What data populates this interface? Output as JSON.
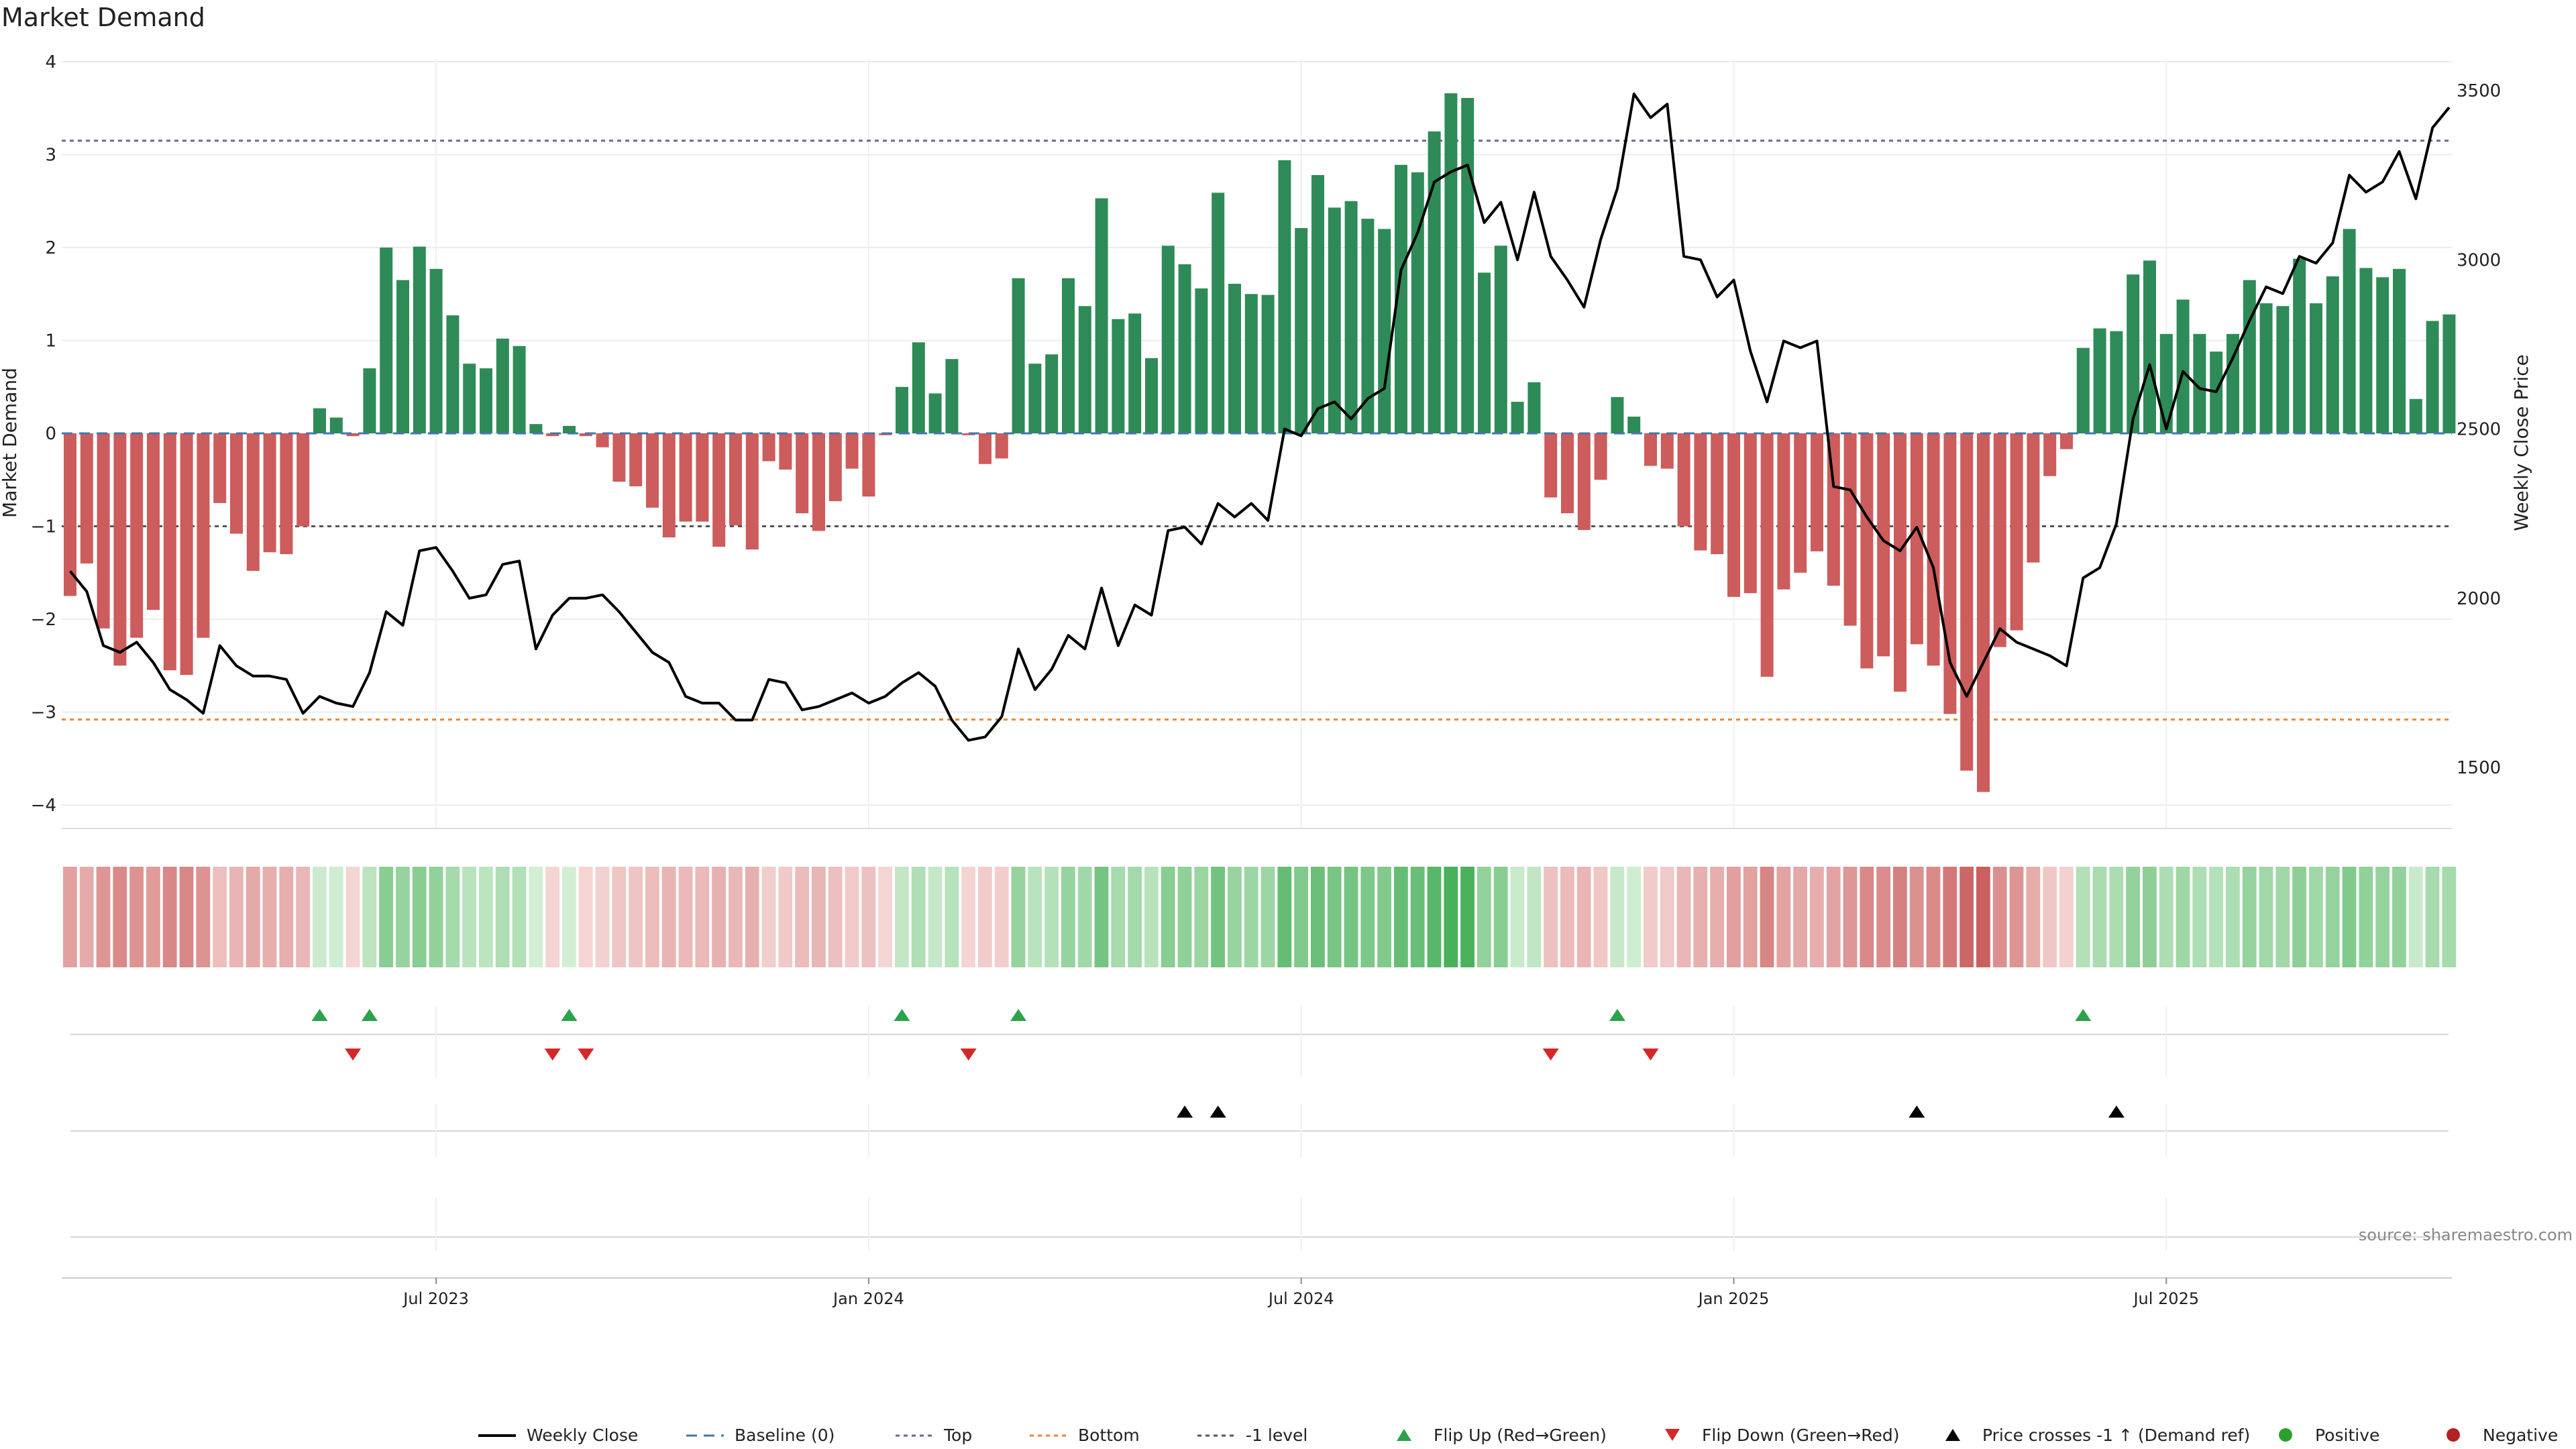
{
  "chart_data": {
    "type": "bar",
    "title": "Market Demand",
    "ylabel": "Market Demand",
    "y2label": "Weekly Close Price",
    "source": "source: sharemaestro.com",
    "ylim": [
      -4.3,
      4.0
    ],
    "y_ticks": [
      -4,
      -3,
      -2,
      -1,
      0,
      1,
      2,
      3,
      4
    ],
    "y2lim": [
      1350,
      3570
    ],
    "y2_ticks": [
      1500,
      2000,
      2500,
      3000,
      3500
    ],
    "x_ticks": [
      {
        "index": 22,
        "label": "Jul 2023"
      },
      {
        "index": 48,
        "label": "Jan 2024"
      },
      {
        "index": 74,
        "label": "Jul 2024"
      },
      {
        "index": 100,
        "label": "Jan 2025"
      },
      {
        "index": 126,
        "label": "Jul 2025"
      }
    ],
    "levels": {
      "top": 3.15,
      "bottom": -3.08,
      "minus_one": -1
    },
    "weeks": 144,
    "demand": [
      -1.75,
      -1.4,
      -2.1,
      -2.5,
      -2.2,
      -1.9,
      -2.55,
      -2.6,
      -2.2,
      -0.75,
      -1.08,
      -1.48,
      -1.28,
      -1.3,
      -1.0,
      0.27,
      0.17,
      -0.03,
      0.7,
      2.0,
      1.65,
      2.01,
      1.77,
      1.27,
      0.75,
      0.7,
      1.02,
      0.94,
      0.1,
      -0.03,
      0.08,
      -0.03,
      -0.15,
      -0.52,
      -0.57,
      -0.8,
      -1.12,
      -0.95,
      -0.95,
      -1.22,
      -0.99,
      -1.25,
      -0.3,
      -0.39,
      -0.86,
      -1.05,
      -0.73,
      -0.38,
      -0.68,
      -0.02,
      0.5,
      0.98,
      0.43,
      0.8,
      -0.02,
      -0.33,
      -0.27,
      1.67,
      0.75,
      0.85,
      1.67,
      1.37,
      2.53,
      1.23,
      1.29,
      0.81,
      2.02,
      1.82,
      1.56,
      2.59,
      1.61,
      1.5,
      1.49,
      2.94,
      2.21,
      2.78,
      2.43,
      2.5,
      2.31,
      2.2,
      2.89,
      2.81,
      3.25,
      3.66,
      3.61,
      1.73,
      2.02,
      0.34,
      0.55,
      -0.69,
      -0.86,
      -1.04,
      -0.5,
      0.39,
      0.18,
      -0.35,
      -0.38,
      -1.0,
      -1.26,
      -1.3,
      -1.76,
      -1.72,
      -2.62,
      -1.68,
      -1.5,
      -1.27,
      -1.64,
      -2.07,
      -2.53,
      -2.4,
      -2.78,
      -2.27,
      -2.5,
      -3.02,
      -3.63,
      -3.86,
      -2.3,
      -2.12,
      -1.39,
      -0.46,
      -0.17,
      0.92,
      1.13,
      1.1,
      1.71,
      1.86,
      1.07,
      1.44,
      1.07,
      0.88,
      1.07,
      1.65,
      1.4,
      1.37,
      1.88,
      1.4,
      1.69,
      2.2,
      1.78,
      1.68,
      1.77,
      0.37,
      1.21,
      1.28
    ],
    "close": [
      2080,
      2020,
      1860,
      1840,
      1870,
      1810,
      1730,
      1700,
      1660,
      1860,
      1800,
      1770,
      1770,
      1760,
      1660,
      1710,
      1690,
      1680,
      1780,
      1960,
      1920,
      2140,
      2150,
      2080,
      2000,
      2010,
      2100,
      2110,
      1850,
      1950,
      2000,
      2000,
      2010,
      1960,
      1900,
      1840,
      1810,
      1710,
      1690,
      1690,
      1640,
      1640,
      1760,
      1750,
      1670,
      1680,
      1700,
      1720,
      1690,
      1710,
      1750,
      1780,
      1740,
      1640,
      1580,
      1590,
      1650,
      1850,
      1730,
      1790,
      1890,
      1850,
      2030,
      1860,
      1980,
      1950,
      2200,
      2210,
      2160,
      2280,
      2240,
      2280,
      2230,
      2500,
      2480,
      2560,
      2580,
      2530,
      2590,
      2620,
      2970,
      3080,
      3230,
      3260,
      3280,
      3110,
      3170,
      3000,
      3200,
      3010,
      2940,
      2860,
      3060,
      3210,
      3490,
      3420,
      3460,
      3010,
      3000,
      2890,
      2940,
      2730,
      2580,
      2760,
      2740,
      2760,
      2330,
      2320,
      2240,
      2170,
      2140,
      2210,
      2090,
      1810,
      1710,
      1810,
      1910,
      1870,
      1850,
      1830,
      1800,
      2060,
      2090,
      2220,
      2530,
      2690,
      2500,
      2670,
      2620,
      2610,
      2710,
      2820,
      2920,
      2900,
      3010,
      2990,
      3050,
      3250,
      3200,
      3230,
      3320,
      3180,
      3390,
      3450
    ],
    "flip_up": [
      15,
      18,
      30,
      50,
      57,
      93,
      121
    ],
    "flip_down": [
      17,
      29,
      31,
      54,
      89,
      95
    ],
    "price_cross": [
      67,
      69,
      111,
      123
    ],
    "legend": [
      {
        "key": "close",
        "label": "Weekly Close"
      },
      {
        "key": "baseline",
        "label": "Baseline (0)"
      },
      {
        "key": "top",
        "label": "Top"
      },
      {
        "key": "bottom",
        "label": "Bottom"
      },
      {
        "key": "minus1",
        "label": "-1 level"
      },
      {
        "key": "flipup",
        "label": "Flip Up (Red→Green)"
      },
      {
        "key": "flipdown",
        "label": "Flip Down (Green→Red)"
      },
      {
        "key": "cross",
        "label": "Price crosses -1 ↑ (Demand ref)"
      },
      {
        "key": "positive",
        "label": "Positive"
      },
      {
        "key": "negative",
        "label": "Negative"
      }
    ],
    "colors": {
      "positive": "#2e8b57",
      "negative": "#cd5c5c",
      "close": "#000000",
      "baseline": "#4477aa",
      "top": "#6a6a8a",
      "bottom": "#e08a3c",
      "minus1": "#555555",
      "flip_up": "#2ca24a",
      "flip_down": "#d62728",
      "cross": "#000000",
      "positive_marker": "#2ca02c",
      "negative_marker": "#b22222"
    }
  }
}
